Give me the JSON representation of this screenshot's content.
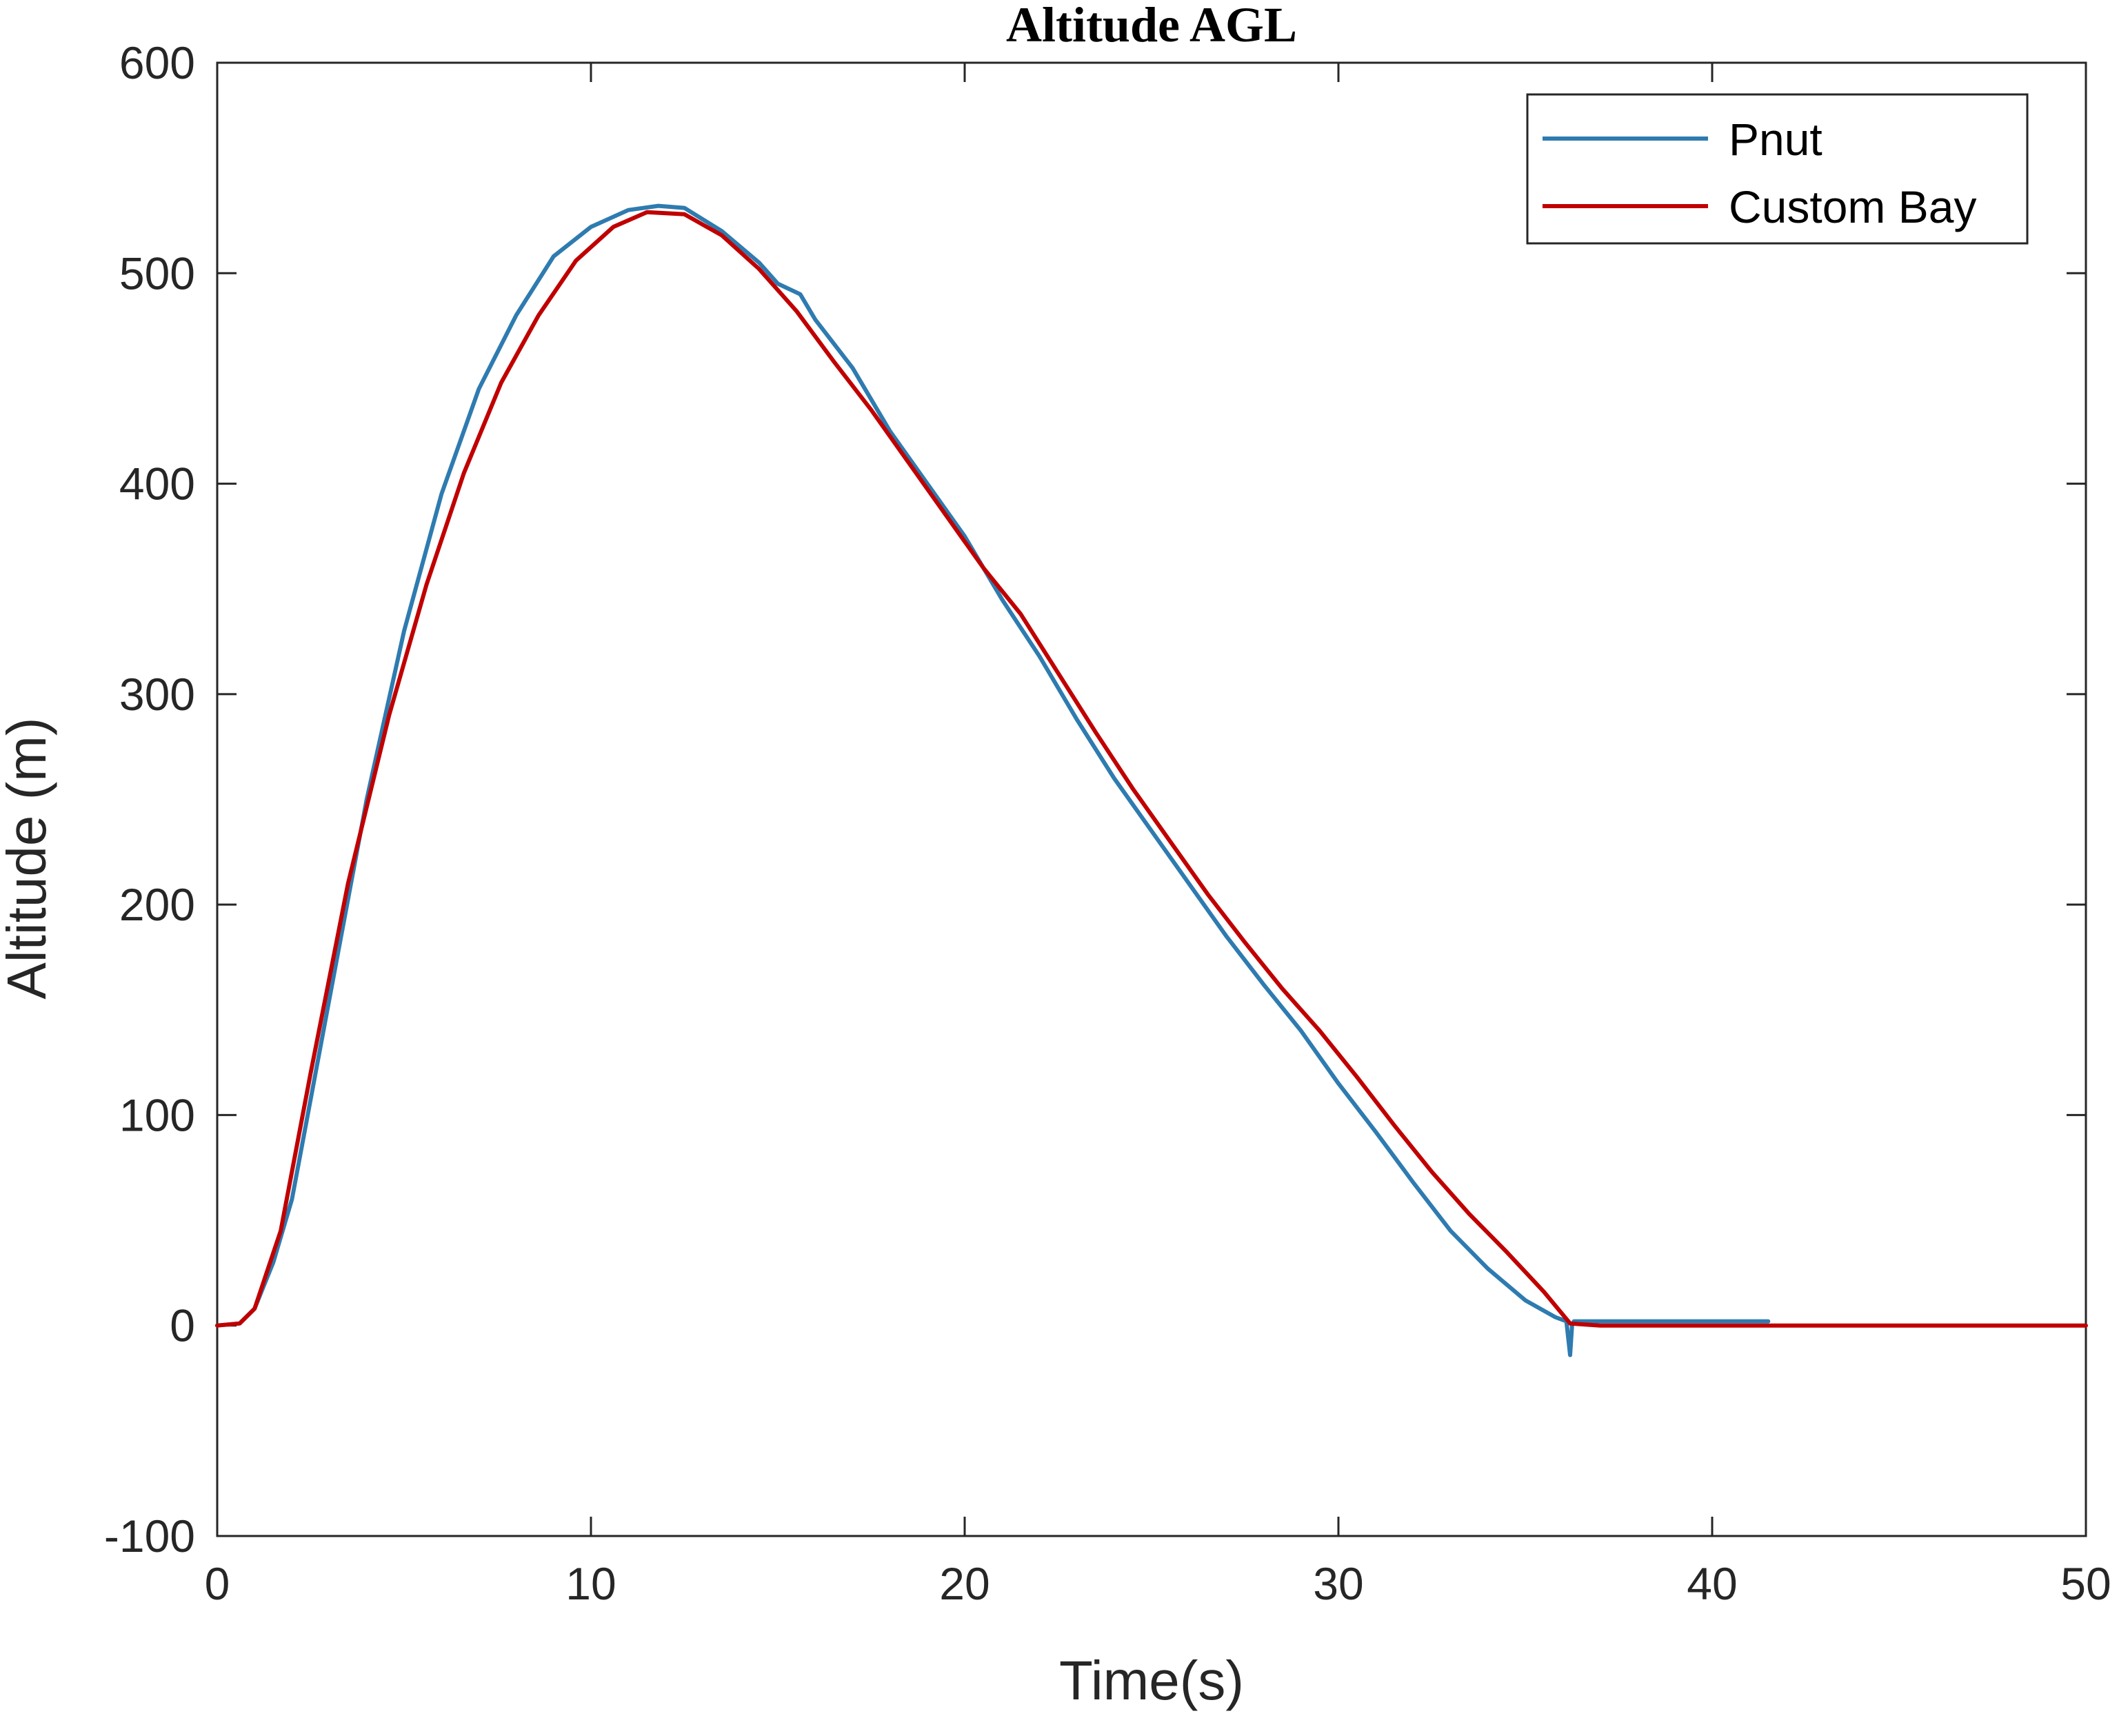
{
  "chart_data": {
    "type": "line",
    "title": "Altitude AGL",
    "xlabel": "Time(s)",
    "ylabel": "Altitude (m)",
    "xlim": [
      0,
      50
    ],
    "ylim": [
      -100,
      600
    ],
    "xticks": [
      0,
      10,
      20,
      30,
      40,
      50
    ],
    "yticks": [
      -100,
      0,
      100,
      200,
      300,
      400,
      500,
      600
    ],
    "grid": false,
    "legend_position": "top-right",
    "series": [
      {
        "name": "Pnut",
        "color": "#2e7bb0",
        "x": [
          0,
          0.6,
          1.0,
          1.5,
          2,
          3,
          4,
          5,
          6,
          7,
          8,
          9,
          10,
          11,
          11.8,
          12.5,
          13.5,
          14.5,
          15,
          15.6,
          16,
          17,
          18,
          19,
          20,
          21,
          22,
          23,
          24,
          25,
          26,
          27,
          28,
          29,
          30,
          31,
          32,
          33,
          34,
          35,
          35.8,
          36.1,
          36.2,
          36.25,
          36.3,
          36.5,
          37,
          38,
          39,
          40,
          41,
          41.5
        ],
        "y": [
          0,
          1,
          8,
          30,
          60,
          155,
          250,
          330,
          395,
          445,
          480,
          508,
          522,
          530,
          532,
          531,
          520,
          505,
          495,
          490,
          478,
          455,
          425,
          400,
          375,
          345,
          318,
          288,
          260,
          235,
          210,
          185,
          162,
          140,
          115,
          92,
          68,
          45,
          27,
          12,
          4,
          2,
          -14,
          0,
          2,
          2,
          2,
          2,
          2,
          2,
          2,
          2
        ]
      },
      {
        "name": "Custom Bay",
        "color": "#c00000",
        "x": [
          0,
          0.6,
          1.0,
          1.7,
          2.5,
          3.5,
          4.6,
          5.6,
          6.6,
          7.6,
          8.6,
          9.6,
          10.6,
          11.5,
          12.5,
          13.5,
          14.5,
          15.5,
          16.5,
          17.5,
          18.5,
          19.5,
          20.5,
          21.5,
          22.5,
          23.5,
          24.5,
          25.5,
          26.5,
          27.5,
          28.5,
          29.5,
          30.5,
          31.5,
          32.5,
          33.5,
          34.5,
          35.5,
          36.2,
          37,
          40,
          43,
          46,
          50
        ],
        "y": [
          0,
          1,
          8,
          45,
          120,
          210,
          290,
          352,
          405,
          448,
          480,
          506,
          522,
          529,
          528,
          518,
          502,
          482,
          458,
          435,
          410,
          385,
          360,
          338,
          310,
          282,
          255,
          230,
          205,
          182,
          160,
          140,
          118,
          95,
          73,
          53,
          35,
          16,
          1,
          0,
          0,
          0,
          0,
          0
        ]
      }
    ]
  }
}
